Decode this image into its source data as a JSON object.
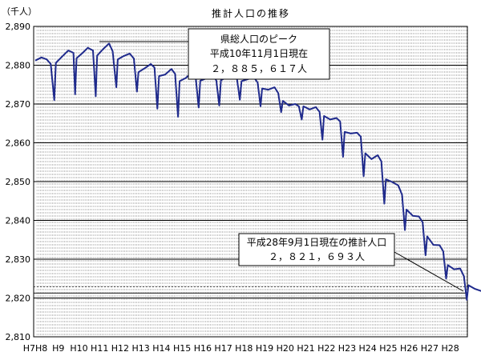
{
  "chart_data": {
    "type": "line",
    "title": "推計人口の推移",
    "unit_label": "（千人）",
    "ylim": [
      2810,
      2890
    ],
    "y_ticks": [
      "2,810",
      "2,820",
      "2,830",
      "2,840",
      "2,850",
      "2,860",
      "2,870",
      "2,880",
      "2,890"
    ],
    "y_tick_values": [
      2810,
      2820,
      2830,
      2840,
      2850,
      2860,
      2870,
      2880,
      2890
    ],
    "x_tick_labels": [
      "H7H8",
      "H9",
      "H10",
      "H11",
      "H12",
      "H13",
      "H14",
      "H15",
      "H16",
      "H17",
      "H18",
      "H19",
      "H20",
      "H21",
      "H22",
      "H23",
      "H24",
      "H25",
      "H26",
      "H27",
      "H28"
    ],
    "grid": "horizontal every 10 thousand, vertical every month (dashed)",
    "series": [
      {
        "color": "#1f2a8c",
        "points": [
          [
            0.0,
            2881.2
          ],
          [
            0.3,
            2882.0
          ],
          [
            0.55,
            2881.5
          ],
          [
            0.75,
            2880.3
          ],
          [
            0.92,
            2871.0
          ],
          [
            1.0,
            2880.6
          ],
          [
            1.3,
            2882.2
          ],
          [
            1.6,
            2883.8
          ],
          [
            1.85,
            2883.2
          ],
          [
            1.93,
            2872.5
          ],
          [
            2.0,
            2881.8
          ],
          [
            2.3,
            2883.2
          ],
          [
            2.55,
            2884.5
          ],
          [
            2.8,
            2883.8
          ],
          [
            2.93,
            2872.0
          ],
          [
            3.0,
            2882.5
          ],
          [
            3.3,
            2884.2
          ],
          [
            3.58,
            2885.617
          ],
          [
            3.75,
            2883.6
          ],
          [
            3.93,
            2874.3
          ],
          [
            4.0,
            2881.5
          ],
          [
            4.3,
            2882.4
          ],
          [
            4.58,
            2883.0
          ],
          [
            4.78,
            2881.7
          ],
          [
            4.93,
            2873.2
          ],
          [
            5.0,
            2878.2
          ],
          [
            5.3,
            2879.2
          ],
          [
            5.6,
            2880.3
          ],
          [
            5.78,
            2879.4
          ],
          [
            5.92,
            2868.8
          ],
          [
            6.0,
            2877.2
          ],
          [
            6.3,
            2877.6
          ],
          [
            6.6,
            2879.0
          ],
          [
            6.78,
            2877.8
          ],
          [
            6.92,
            2866.7
          ],
          [
            7.0,
            2875.9
          ],
          [
            7.3,
            2876.7
          ],
          [
            7.6,
            2878.2
          ],
          [
            7.78,
            2876.7
          ],
          [
            7.92,
            2869.1
          ],
          [
            8.0,
            2876.0
          ],
          [
            8.3,
            2876.6
          ],
          [
            8.6,
            2877.6
          ],
          [
            8.78,
            2876.0
          ],
          [
            8.92,
            2869.6
          ],
          [
            9.0,
            2876.1
          ],
          [
            9.3,
            2877.0
          ],
          [
            9.6,
            2877.9
          ],
          [
            9.78,
            2876.5
          ],
          [
            9.92,
            2871.1
          ],
          [
            10.0,
            2875.9
          ],
          [
            10.3,
            2876.4
          ],
          [
            10.6,
            2876.9
          ],
          [
            10.78,
            2875.5
          ],
          [
            10.92,
            2869.4
          ],
          [
            11.0,
            2874.0
          ],
          [
            11.3,
            2873.7
          ],
          [
            11.6,
            2874.3
          ],
          [
            11.78,
            2872.8
          ],
          [
            11.92,
            2867.9
          ],
          [
            12.0,
            2870.8
          ],
          [
            12.3,
            2869.6
          ],
          [
            12.6,
            2870.0
          ],
          [
            12.78,
            2869.4
          ],
          [
            12.92,
            2866.0
          ],
          [
            13.0,
            2869.4
          ],
          [
            13.3,
            2868.6
          ],
          [
            13.6,
            2869.2
          ],
          [
            13.78,
            2868.0
          ],
          [
            13.92,
            2860.8
          ],
          [
            14.0,
            2866.9
          ],
          [
            14.3,
            2866.0
          ],
          [
            14.6,
            2866.4
          ],
          [
            14.78,
            2865.5
          ],
          [
            14.92,
            2856.4
          ],
          [
            15.0,
            2862.8
          ],
          [
            15.3,
            2862.4
          ],
          [
            15.6,
            2862.6
          ],
          [
            15.78,
            2861.6
          ],
          [
            15.92,
            2851.4
          ],
          [
            16.0,
            2857.3
          ],
          [
            16.3,
            2855.8
          ],
          [
            16.6,
            2856.8
          ],
          [
            16.78,
            2855.2
          ],
          [
            16.92,
            2844.3
          ],
          [
            17.0,
            2850.6
          ],
          [
            17.3,
            2849.9
          ],
          [
            17.6,
            2849.0
          ],
          [
            17.78,
            2846.6
          ],
          [
            17.92,
            2837.5
          ],
          [
            18.0,
            2842.8
          ],
          [
            18.3,
            2841.2
          ],
          [
            18.6,
            2841.0
          ],
          [
            18.78,
            2839.5
          ],
          [
            18.92,
            2831.0
          ],
          [
            19.0,
            2835.9
          ],
          [
            19.3,
            2833.7
          ],
          [
            19.6,
            2833.6
          ],
          [
            19.78,
            2832.0
          ],
          [
            19.92,
            2825.0
          ],
          [
            20.0,
            2828.5
          ],
          [
            20.3,
            2827.4
          ],
          [
            20.6,
            2827.6
          ],
          [
            20.78,
            2825.6
          ],
          [
            20.92,
            2819.5
          ],
          [
            21.0,
            2823.3
          ],
          [
            21.3,
            2822.4
          ],
          [
            21.67,
            2821.693
          ]
        ]
      }
    ],
    "annotations": [
      {
        "lines": [
          "県総人口のピーク",
          "平成10年11月1日現在",
          "２，８８５，６１７人"
        ]
      },
      {
        "lines": [
          "平成28年9月1日現在の推計人口",
          "２，８２１，６９３人"
        ]
      }
    ]
  }
}
